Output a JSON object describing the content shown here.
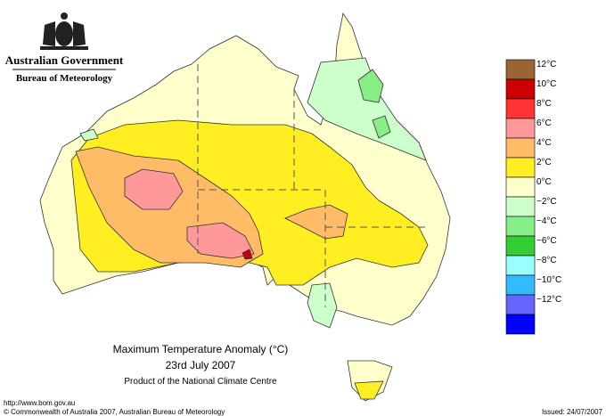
{
  "header": {
    "agency": "Australian Government",
    "bureau": "Bureau of Meteorology"
  },
  "map": {
    "title": "Maximum Temperature Anomaly (°C)",
    "date": "23rd July 2007",
    "product": "Product of the National Climate Centre"
  },
  "legend": {
    "colors": [
      "#996633",
      "#cc0000",
      "#ff3333",
      "#ff9999",
      "#ffbb66",
      "#ffee22",
      "#ffffcc",
      "#ccffcc",
      "#88ee88",
      "#33cc33",
      "#99ffff",
      "#33bbff",
      "#6666ff",
      "#0000ff"
    ],
    "labels": [
      "12°C",
      "10°C",
      "8°C",
      "6°C",
      "4°C",
      "2°C",
      "0°C",
      "−2°C",
      "−4°C",
      "−6°C",
      "−8°C",
      "−10°C",
      "−12°C"
    ]
  },
  "footer": {
    "url": "http://www.bom.gov.au",
    "copyright": "© Commonwealth of Australia 2007, Australian Bureau of Meteorology",
    "issued": "Issued: 24/07/2007"
  }
}
